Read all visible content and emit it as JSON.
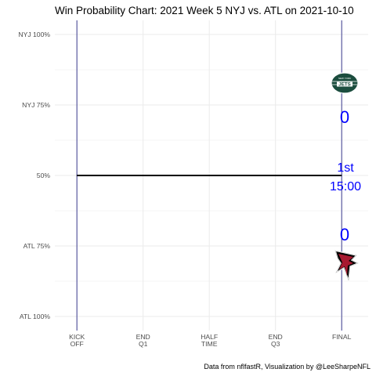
{
  "chart_data": {
    "type": "line",
    "title": "Win Probability Chart: 2021 Week 5 NYJ vs. ATL on 2021-10-10",
    "caption": "Data from nflfastR, Visualization by @LeeSharpeNFL",
    "y_ticks": [
      {
        "label": "NYJ 100%",
        "value": 1.0
      },
      {
        "label": "NYJ 75%",
        "value": 0.75
      },
      {
        "label": "50%",
        "value": 0.5
      },
      {
        "label": "ATL 75%",
        "value": 0.25
      },
      {
        "label": "ATL 100%",
        "value": 0.0
      }
    ],
    "x_ticks": [
      {
        "label": [
          "KICK",
          "OFF"
        ],
        "value": 0
      },
      {
        "label": [
          "END",
          "Q1"
        ],
        "value": 900
      },
      {
        "label": [
          "HALF",
          "TIME"
        ],
        "value": 1800
      },
      {
        "label": [
          "END",
          "Q3"
        ],
        "value": 2700
      },
      {
        "label": [
          "FINAL"
        ],
        "value": 3600
      }
    ],
    "xlim": [
      -300,
      3960
    ],
    "ylim": [
      -0.05,
      1.05
    ],
    "series": [
      {
        "x": [
          0,
          3600
        ],
        "y": [
          0.5,
          0.5
        ]
      }
    ],
    "vlines": [
      0,
      3600
    ],
    "grid": true,
    "home": {
      "team": "NYJ",
      "score": "0",
      "color": "#0000ff",
      "logo": "jets-logo"
    },
    "away": {
      "team": "ATL",
      "score": "0",
      "color": "#0000ff",
      "logo": "falcons-logo"
    },
    "game_status": {
      "quarter": "1st",
      "clock": "15:00",
      "color": "#0000ff"
    },
    "colors": {
      "line": "#000000",
      "vline": "#3b3b8f",
      "grid": "#ebebeb",
      "jets_green": "#1b4d3e",
      "falcons_red": "#a71930"
    }
  }
}
